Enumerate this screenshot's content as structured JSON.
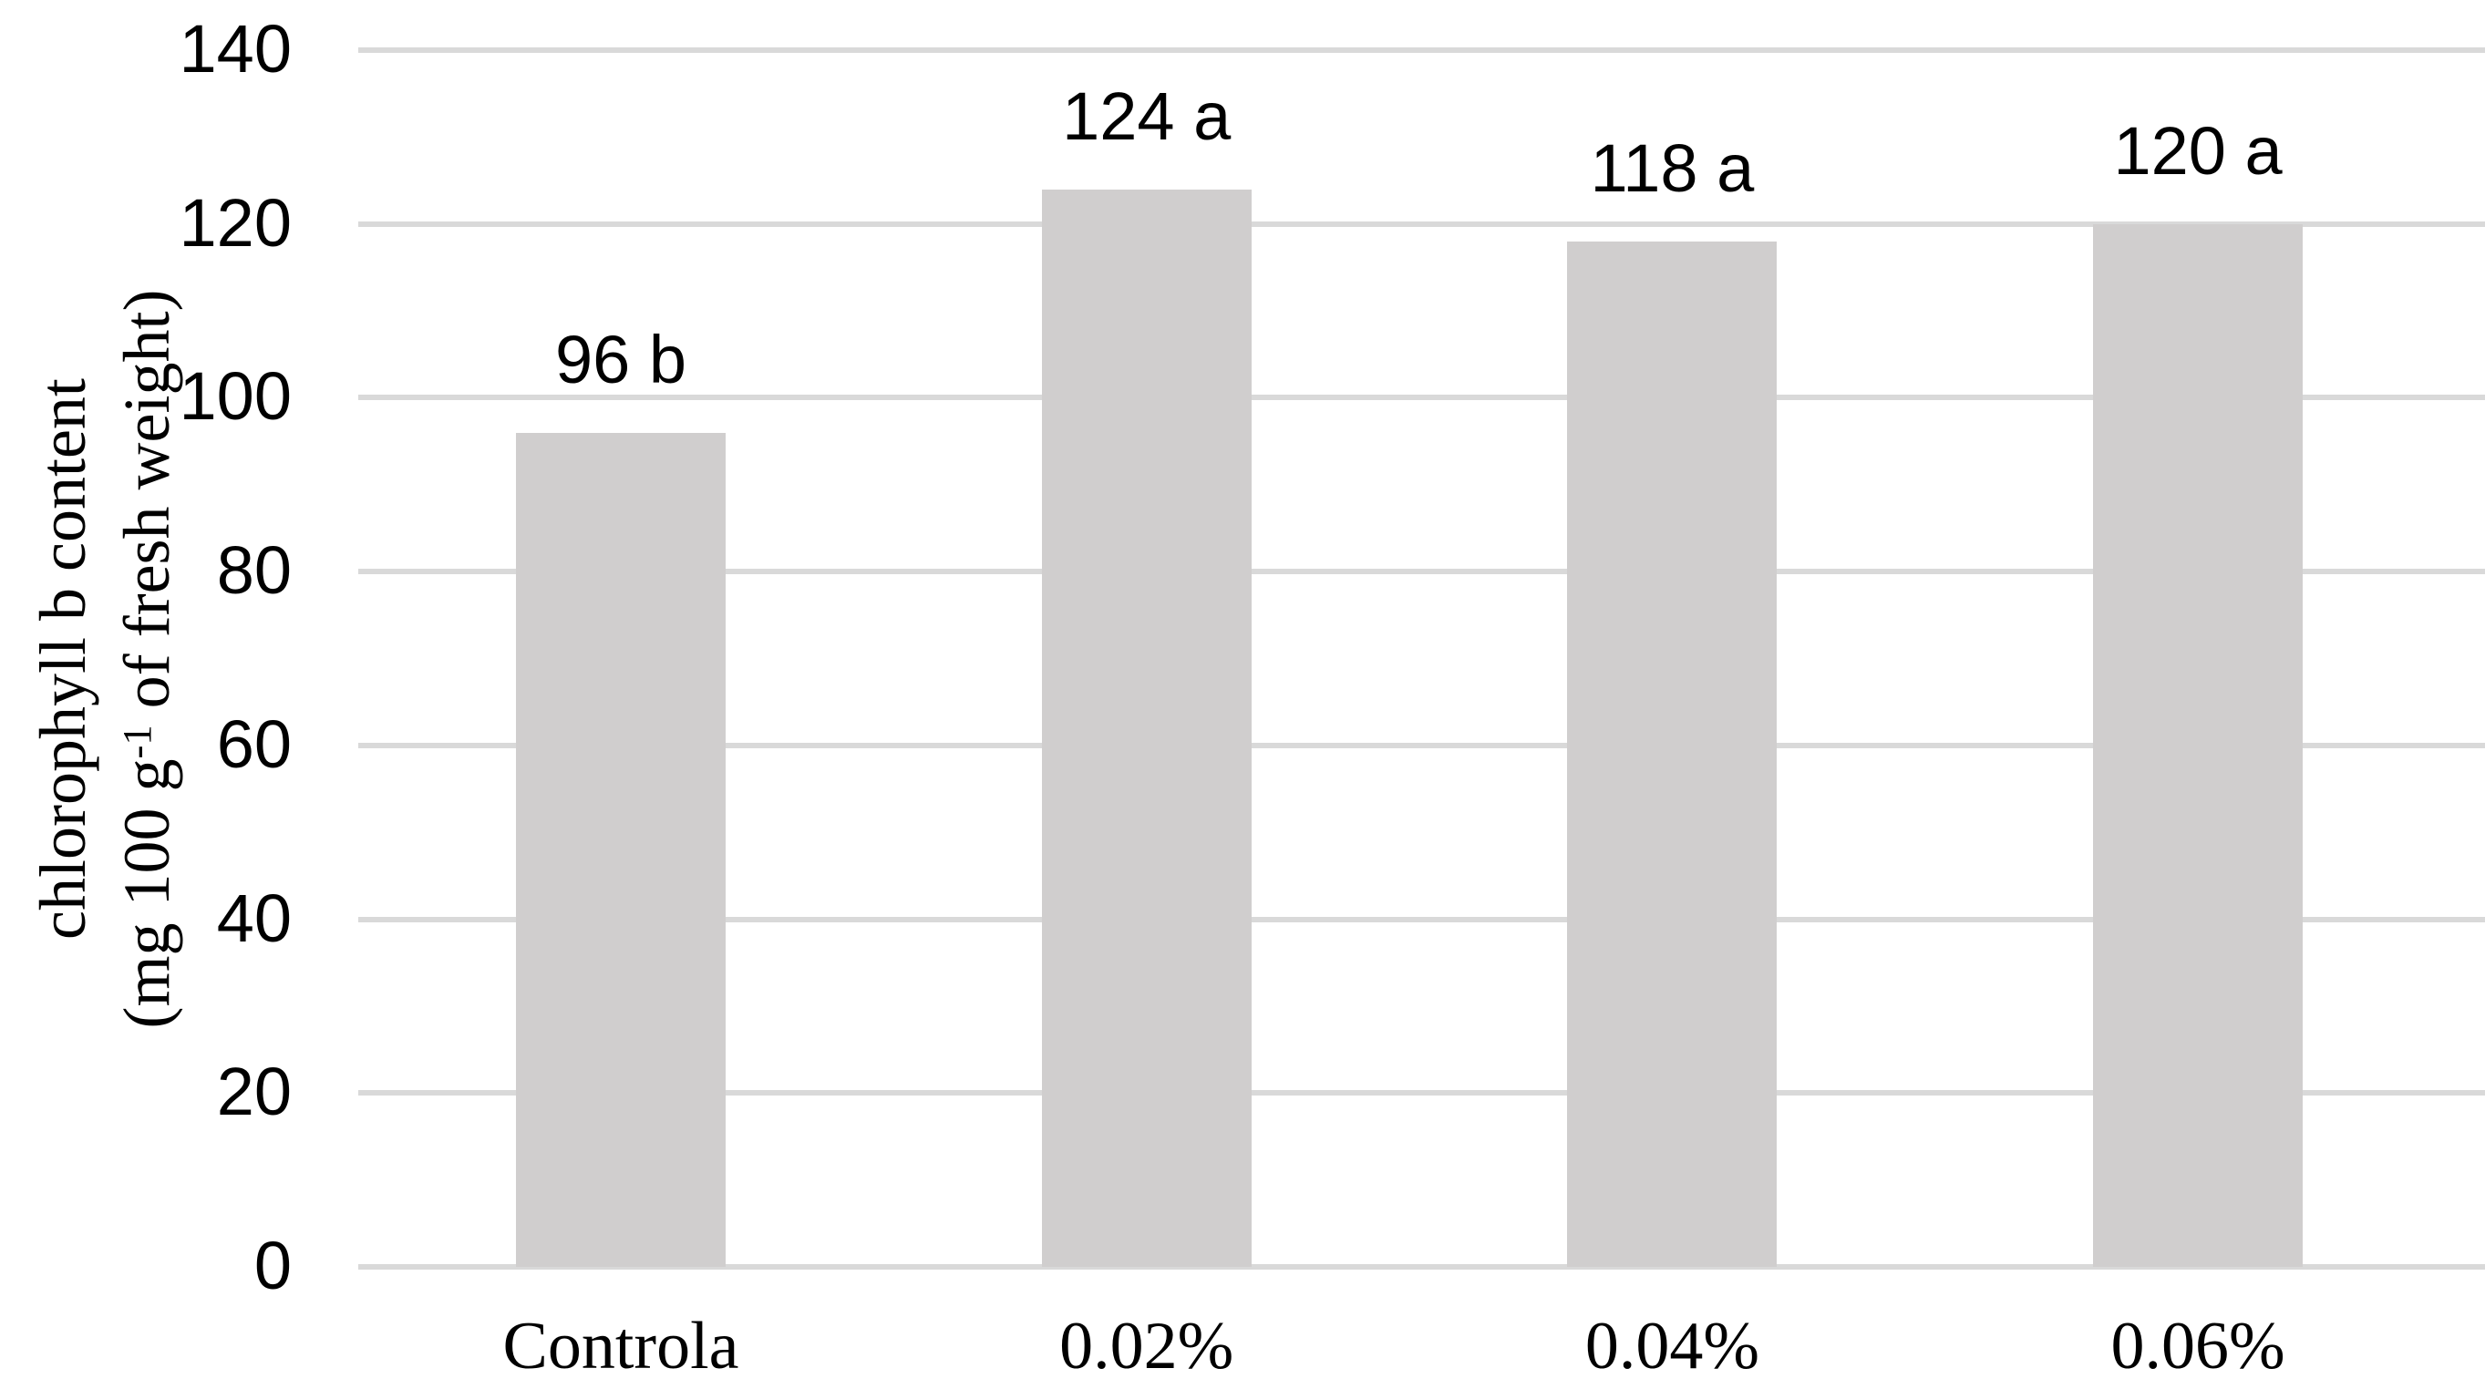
{
  "chart_data": {
    "type": "bar",
    "categories": [
      "Controla",
      "0.02%",
      "0.04%",
      "0.06%"
    ],
    "values": [
      96,
      124,
      118,
      120
    ],
    "bar_labels": [
      "96 b",
      "124 a",
      "118 a",
      "120 a"
    ],
    "y_ticks": [
      0,
      20,
      40,
      60,
      80,
      100,
      120,
      140
    ],
    "ylim": [
      0,
      140
    ],
    "ylabel_line1": "chlorophyll b content",
    "ylabel_line2_pre": "(mg 100 g",
    "ylabel_line2_sup": "-1",
    "ylabel_line2_post": " of fresh weight)",
    "xlabel": "",
    "title": "",
    "legend": "none",
    "grid": "horizontal",
    "bar_color": "#d0cece",
    "gridline_color": "#d9d9d9",
    "text_color": "#000000"
  }
}
